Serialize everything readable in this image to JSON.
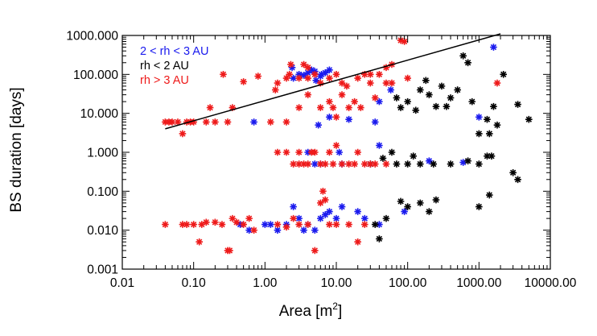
{
  "chart_data": {
    "type": "scatter",
    "title": "",
    "xlabel": "Area [m",
    "xlabel_sup": "2",
    "xlabel_close": "]",
    "ylabel": "BS duration [days]",
    "xscale": "log",
    "yscale": "log",
    "xlim": [
      0.01,
      10000
    ],
    "ylim": [
      0.001,
      1000
    ],
    "x_ticks": [
      0.01,
      0.1,
      1,
      10,
      100,
      1000,
      10000
    ],
    "x_tick_labels": [
      "0.01",
      "0.10",
      "1.00",
      "10.00",
      "100.00",
      "1000.00",
      "10000.00"
    ],
    "y_ticks": [
      0.001,
      0.01,
      0.1,
      1,
      10,
      100,
      1000
    ],
    "y_tick_labels": [
      "0.001",
      "0.010",
      "0.100",
      "1.000",
      "10.000",
      "100.000",
      "1000.000"
    ],
    "legend_position": "top-left",
    "marker": "*",
    "fit_line": {
      "x": [
        0.04,
        2000
      ],
      "y": [
        4,
        1100
      ],
      "color": "#000000"
    },
    "series": [
      {
        "name": "2 < rh < 3 AU",
        "color": "#1a1aee",
        "points": [
          [
            0.7,
            6
          ],
          [
            5.6,
            5
          ],
          [
            8,
            8
          ],
          [
            15,
            7
          ],
          [
            35,
            6
          ],
          [
            40,
            20
          ],
          [
            58,
            40
          ],
          [
            1600,
            500
          ],
          [
            1000,
            8
          ],
          [
            600,
            0.55
          ],
          [
            200,
            0.6
          ],
          [
            2.4,
            150
          ],
          [
            3,
            100
          ],
          [
            4,
            110
          ],
          [
            5,
            120
          ],
          [
            6,
            90
          ],
          [
            7,
            110
          ],
          [
            2.5,
            80
          ],
          [
            3.5,
            95
          ],
          [
            4.5,
            130
          ],
          [
            5.2,
            70
          ],
          [
            6.2,
            100
          ],
          [
            8,
            130
          ],
          [
            4,
            1
          ],
          [
            5,
            0.5
          ],
          [
            6,
            0.5
          ],
          [
            11,
            1
          ],
          [
            12,
            0.5
          ],
          [
            30,
            0.5
          ],
          [
            40,
            1.5
          ],
          [
            1,
            0.014
          ],
          [
            1.2,
            0.014
          ],
          [
            1.5,
            0.01
          ],
          [
            2,
            0.014
          ],
          [
            3,
            0.02
          ],
          [
            4,
            0.014
          ],
          [
            5,
            0.01
          ],
          [
            6,
            0.02
          ],
          [
            8,
            0.03
          ],
          [
            10,
            0.02
          ],
          [
            0.45,
            0.014
          ],
          [
            0.6,
            0.01
          ],
          [
            2.5,
            0.04
          ],
          [
            7,
            0.025
          ],
          [
            12,
            0.04
          ],
          [
            20,
            0.03
          ],
          [
            25,
            0.02
          ],
          [
            40,
            0.014
          ],
          [
            90,
            0.03
          ],
          [
            3.5,
            0.01
          ]
        ]
      },
      {
        "name": "rh < 2 AU",
        "color": "#000000",
        "points": [
          [
            100,
            20
          ],
          [
            80,
            14
          ],
          [
            70,
            25
          ],
          [
            130,
            12
          ],
          [
            200,
            30
          ],
          [
            300,
            50
          ],
          [
            400,
            25
          ],
          [
            500,
            40
          ],
          [
            600,
            300
          ],
          [
            150,
            40
          ],
          [
            250,
            15
          ],
          [
            350,
            15
          ],
          [
            700,
            200
          ],
          [
            2200,
            100
          ],
          [
            1600,
            15
          ],
          [
            1800,
            5
          ],
          [
            5000,
            7
          ],
          [
            3500,
            17
          ],
          [
            1000,
            3
          ],
          [
            1300,
            7
          ],
          [
            1400,
            3
          ],
          [
            800,
            20
          ],
          [
            180,
            70
          ],
          [
            70,
            0.5
          ],
          [
            100,
            0.5
          ],
          [
            150,
            0.5
          ],
          [
            120,
            0.8
          ],
          [
            230,
            0.5
          ],
          [
            400,
            0.5
          ],
          [
            700,
            0.6
          ],
          [
            1000,
            0.5
          ],
          [
            1300,
            0.8
          ],
          [
            1500,
            0.8
          ],
          [
            60,
            1
          ],
          [
            30,
            0.5
          ],
          [
            45,
            0.7
          ],
          [
            40,
            0.006
          ],
          [
            80,
            0.055
          ],
          [
            100,
            0.04
          ],
          [
            150,
            0.05
          ],
          [
            200,
            0.03
          ],
          [
            250,
            0.06
          ],
          [
            1400,
            0.08
          ],
          [
            1000,
            0.04
          ],
          [
            3000,
            0.3
          ],
          [
            3500,
            0.2
          ],
          [
            35,
            0.014
          ],
          [
            50,
            0.02
          ]
        ]
      },
      {
        "name": "rh > 3 AU",
        "color": "#ee1a1a",
        "points": [
          [
            0.04,
            6
          ],
          [
            0.045,
            6
          ],
          [
            0.05,
            6
          ],
          [
            0.06,
            6
          ],
          [
            0.07,
            3
          ],
          [
            0.08,
            6
          ],
          [
            0.09,
            6
          ],
          [
            0.1,
            6
          ],
          [
            0.15,
            6
          ],
          [
            0.17,
            14
          ],
          [
            0.2,
            6
          ],
          [
            0.3,
            6
          ],
          [
            0.35,
            14
          ],
          [
            1.2,
            6
          ],
          [
            2,
            6
          ],
          [
            3,
            14
          ],
          [
            0.26,
            100
          ],
          [
            0.5,
            65
          ],
          [
            0.8,
            90
          ],
          [
            1.5,
            60
          ],
          [
            2,
            80
          ],
          [
            2.2,
            100
          ],
          [
            3,
            80
          ],
          [
            4,
            80
          ],
          [
            5,
            100
          ],
          [
            6,
            60
          ],
          [
            8,
            80
          ],
          [
            10,
            100
          ],
          [
            12,
            60
          ],
          [
            14,
            50
          ],
          [
            20,
            80
          ],
          [
            25,
            100
          ],
          [
            30,
            60
          ],
          [
            40,
            100
          ],
          [
            50,
            150
          ],
          [
            60,
            60
          ],
          [
            80,
            750
          ],
          [
            90,
            700
          ],
          [
            1.4,
            40
          ],
          [
            4,
            150
          ],
          [
            2.3,
            180
          ],
          [
            3.5,
            180
          ],
          [
            60,
            180
          ],
          [
            100,
            80
          ],
          [
            1800,
            60
          ],
          [
            4,
            30
          ],
          [
            6,
            14
          ],
          [
            8,
            20
          ],
          [
            9,
            14
          ],
          [
            10,
            8
          ],
          [
            12,
            30
          ],
          [
            15,
            14
          ],
          [
            18,
            20
          ],
          [
            22,
            14
          ],
          [
            30,
            100
          ],
          [
            35,
            25
          ],
          [
            50,
            60
          ],
          [
            2,
            1
          ],
          [
            2.5,
            0.5
          ],
          [
            3,
            1
          ],
          [
            3.5,
            0.5
          ],
          [
            4,
            0.5
          ],
          [
            4.5,
            1
          ],
          [
            6,
            0.5
          ],
          [
            7,
            0.5
          ],
          [
            8,
            1
          ],
          [
            9,
            0.5
          ],
          [
            10,
            1.5
          ],
          [
            12,
            0.5
          ],
          [
            15,
            0.5
          ],
          [
            18,
            0.5
          ],
          [
            20,
            1
          ],
          [
            25,
            0.5
          ],
          [
            30,
            0.5
          ],
          [
            35,
            0.5
          ],
          [
            50,
            0.5
          ],
          [
            1.5,
            1
          ],
          [
            3,
            0.5
          ],
          [
            5,
            1
          ],
          [
            0.04,
            0.014
          ],
          [
            0.07,
            0.014
          ],
          [
            0.08,
            0.014
          ],
          [
            0.12,
            0.005
          ],
          [
            0.15,
            0.016
          ],
          [
            0.2,
            0.016
          ],
          [
            0.25,
            0.014
          ],
          [
            0.3,
            0.003
          ],
          [
            0.32,
            0.003
          ],
          [
            0.35,
            0.02
          ],
          [
            0.4,
            0.016
          ],
          [
            0.5,
            0.014
          ],
          [
            0.6,
            0.02
          ],
          [
            0.7,
            0.01
          ],
          [
            1.5,
            0.014
          ],
          [
            2,
            0.012
          ],
          [
            2.5,
            0.02
          ],
          [
            3,
            0.014
          ],
          [
            4,
            0.014
          ],
          [
            5,
            0.003
          ],
          [
            6,
            0.05
          ],
          [
            6.5,
            0.1
          ],
          [
            7,
            0.06
          ],
          [
            8,
            0.014
          ],
          [
            10,
            0.014
          ],
          [
            15,
            0.014
          ],
          [
            20,
            0.005
          ],
          [
            25,
            0.014
          ],
          [
            0.1,
            0.014
          ],
          [
            0.13,
            0.014
          ]
        ]
      }
    ]
  }
}
